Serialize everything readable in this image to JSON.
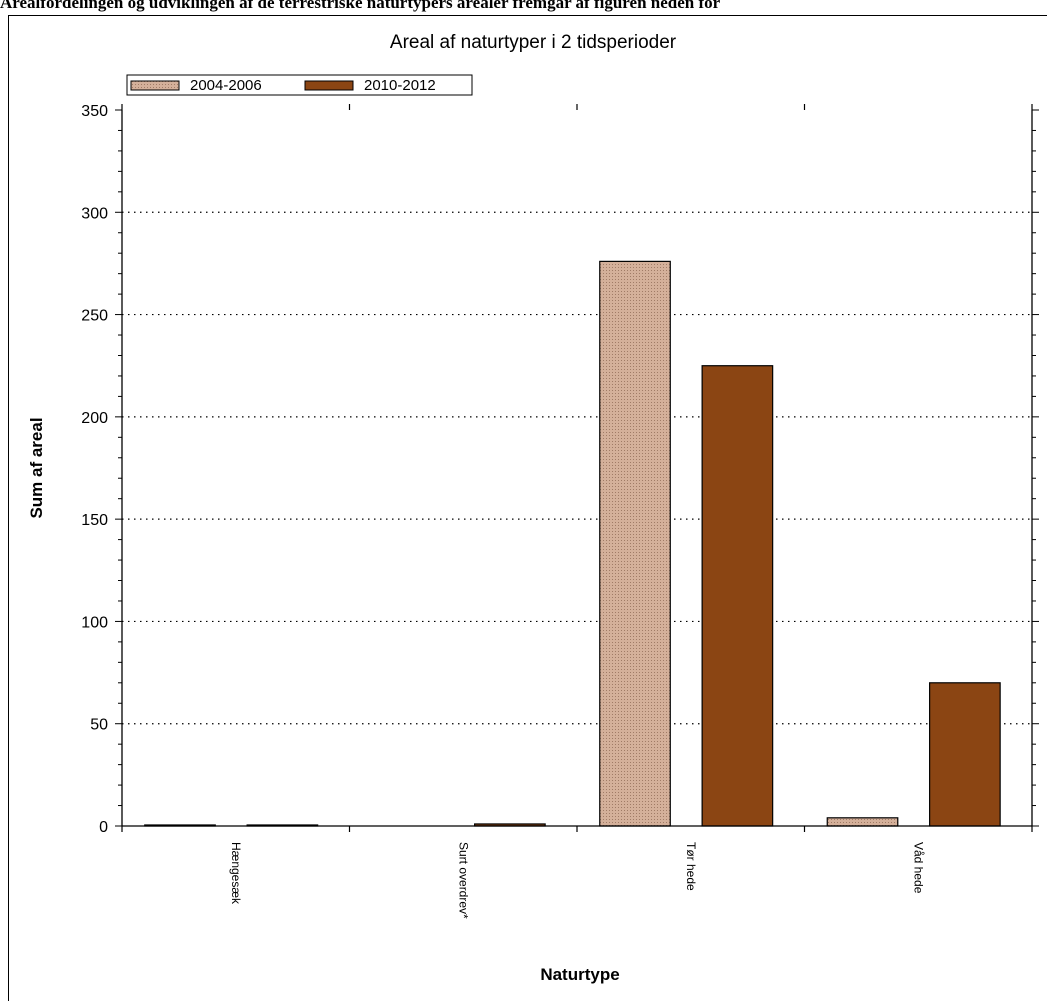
{
  "page": {
    "caption": "Arealfordelingen og udviklingen af de terrestriske naturtypers arealer fremgår af figuren neden for"
  },
  "chart_data": {
    "type": "bar",
    "title": "Areal af naturtyper i 2 tidsperioder",
    "xlabel": "Naturtype",
    "ylabel": "Sum af areal",
    "categories": [
      "Hængesæk",
      "Surt overdrev*",
      "Tør hede",
      "Våd hede"
    ],
    "series": [
      {
        "name": "2004-2006",
        "values": [
          0.5,
          0,
          276,
          4
        ],
        "color": "#d4b09a",
        "pattern": "dotted"
      },
      {
        "name": "2010-2012",
        "values": [
          0.5,
          1,
          225,
          70
        ],
        "color": "#8b4513",
        "pattern": "solid"
      }
    ],
    "ylim": [
      0,
      350
    ],
    "yticks": [
      0,
      50,
      100,
      150,
      200,
      250,
      300,
      350
    ],
    "grid": true,
    "legend_position": "top-left"
  }
}
